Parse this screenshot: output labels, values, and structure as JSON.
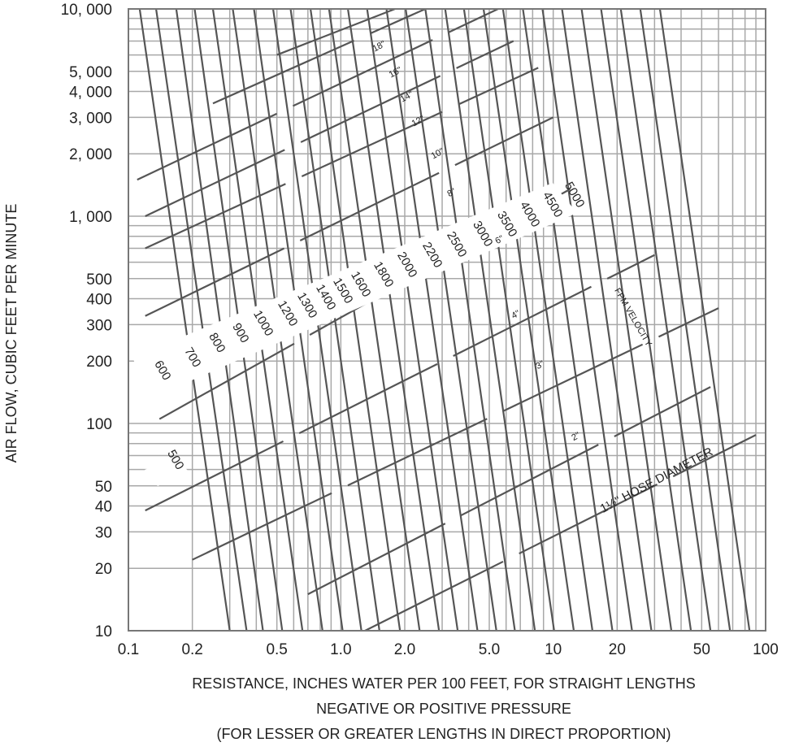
{
  "chart_data": {
    "type": "line",
    "xlabel": [
      "RESISTANCE, INCHES WATER PER 100 FEET, FOR STRAIGHT LENGTHS",
      "NEGATIVE OR POSITIVE PRESSURE",
      "(FOR LESSER OR GREATER LENGTHS IN DIRECT PROPORTION)"
    ],
    "ylabel": "AIR FLOW, CUBIC FEET PER MINUTE",
    "x_scale": "log",
    "y_scale": "log",
    "xlim": [
      0.1,
      100
    ],
    "ylim": [
      10,
      10000
    ],
    "x_ticks": [
      {
        "v": 0.1,
        "label": "0.1"
      },
      {
        "v": 0.2,
        "label": "0.2"
      },
      {
        "v": 0.5,
        "label": "0.5"
      },
      {
        "v": 1,
        "label": "1.0"
      },
      {
        "v": 2,
        "label": "2.0"
      },
      {
        "v": 5,
        "label": "5.0"
      },
      {
        "v": 10,
        "label": "10"
      },
      {
        "v": 20,
        "label": "20"
      },
      {
        "v": 50,
        "label": "50"
      },
      {
        "v": 100,
        "label": "100"
      }
    ],
    "y_ticks": [
      {
        "v": 10,
        "label": "10"
      },
      {
        "v": 20,
        "label": "20"
      },
      {
        "v": 30,
        "label": "30"
      },
      {
        "v": 40,
        "label": "40"
      },
      {
        "v": 50,
        "label": "50"
      },
      {
        "v": 100,
        "label": "100"
      },
      {
        "v": 200,
        "label": "200"
      },
      {
        "v": 300,
        "label": "300"
      },
      {
        "v": 400,
        "label": "400"
      },
      {
        "v": 500,
        "label": "500"
      },
      {
        "v": 1000,
        "label": "1, 000"
      },
      {
        "v": 2000,
        "label": "2, 000"
      },
      {
        "v": 3000,
        "label": "3, 000"
      },
      {
        "v": 4000,
        "label": "4, 000"
      },
      {
        "v": 5000,
        "label": "5, 000"
      },
      {
        "v": 10000,
        "label": "10, 000"
      }
    ],
    "grid": true,
    "series_velocity": {
      "name": "FPM VELOCITY",
      "lines": [
        {
          "label": "500",
          "x0": 0.113,
          "x1": 0.3
        },
        {
          "label": "600",
          "x0": 0.135,
          "x1": 0.36
        },
        {
          "label": "700",
          "x0": 0.168,
          "x1": 0.43
        },
        {
          "label": "800",
          "x0": 0.205,
          "x1": 0.53
        },
        {
          "label": "900",
          "x0": 0.25,
          "x1": 0.66
        },
        {
          "label": "1000",
          "x0": 0.31,
          "x1": 0.82
        },
        {
          "label": "1200",
          "x0": 0.39,
          "x1": 1.02
        },
        {
          "label": "1300",
          "x0": 0.48,
          "x1": 1.25
        },
        {
          "label": "1400",
          "x0": 0.58,
          "x1": 1.52
        },
        {
          "label": "1500",
          "x0": 0.72,
          "x1": 1.9
        },
        {
          "label": "1600",
          "x0": 0.88,
          "x1": 2.35
        },
        {
          "label": "1800",
          "x0": 1.08,
          "x1": 2.9
        },
        {
          "label": "2000",
          "x0": 1.33,
          "x1": 3.55
        },
        {
          "label": "2200",
          "x0": 1.64,
          "x1": 4.4
        },
        {
          "label": "2500",
          "x0": 2.02,
          "x1": 5.4
        },
        {
          "label": "3000",
          "x0": 2.5,
          "x1": 6.6
        },
        {
          "label": "3500",
          "x0": 3.1,
          "x1": 8.2
        },
        {
          "label": "4000",
          "x0": 3.8,
          "x1": 10.1
        },
        {
          "label": "4500",
          "x0": 4.7,
          "x1": 12.5
        },
        {
          "label": "5000",
          "x0": 5.8,
          "x1": 15.3
        },
        {
          "label": "",
          "x0": 7.2,
          "x1": 19
        },
        {
          "label": "",
          "x0": 8.9,
          "x1": 23.5
        },
        {
          "label": "",
          "x0": 11,
          "x1": 29
        },
        {
          "label": "",
          "x0": 13.6,
          "x1": 36
        },
        {
          "label": "",
          "x0": 16.8,
          "x1": 44.5
        },
        {
          "label": "",
          "x0": 20.8,
          "x1": 55
        },
        {
          "label": "",
          "x0": 25.7,
          "x1": 68
        },
        {
          "label": "",
          "x0": 31.8,
          "x1": 84
        }
      ]
    },
    "series_hose": [
      {
        "label": "1½\" HOSE DIAMETER",
        "x0": 1.3,
        "y0": 10,
        "x1": 90,
        "y1": 88
      },
      {
        "label": "2\"",
        "x0": 0.7,
        "y0": 15,
        "x1": 55,
        "y1": 150
      },
      {
        "label": "3\"",
        "x0": 0.2,
        "y0": 22,
        "x1": 60,
        "y1": 360
      },
      {
        "label": "4\"",
        "x0": 0.12,
        "y0": 38,
        "x1": 30,
        "y1": 650
      },
      {
        "label": "6\"",
        "x0": 0.14,
        "y0": 105,
        "x1": 12,
        "y1": 1350
      },
      {
        "label": "8\"",
        "x0": 0.12,
        "y0": 330,
        "x1": 10,
        "y1": 3000
      },
      {
        "label": "10\"",
        "x0": 0.12,
        "y0": 700,
        "x1": 8.5,
        "y1": 5200
      },
      {
        "label": "12\"",
        "x0": 0.12,
        "y0": 1000,
        "x1": 6.5,
        "y1": 7000
      },
      {
        "label": "14\"",
        "x0": 0.11,
        "y0": 1500,
        "x1": 5.5,
        "y1": 10000
      },
      {
        "label": "16\"",
        "x0": 0.25,
        "y0": 3500,
        "x1": 2.5,
        "y1": 10000
      },
      {
        "label": "18\"",
        "x0": 0.5,
        "y0": 6000,
        "x1": 1.8,
        "y1": 10000
      }
    ],
    "annotation": "FPM VELOCITY"
  }
}
